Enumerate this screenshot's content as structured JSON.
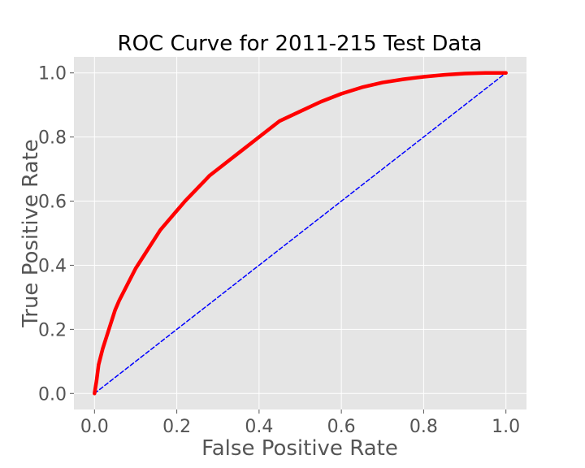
{
  "chart_data": {
    "type": "line",
    "title": "ROC Curve for 2011-215 Test Data",
    "xlabel": "False Positive Rate",
    "ylabel": "True Positive Rate",
    "xlim": [
      -0.05,
      1.05
    ],
    "ylim": [
      -0.05,
      1.05
    ],
    "xticks": [
      0.0,
      0.2,
      0.4,
      0.6,
      0.8,
      1.0
    ],
    "yticks": [
      0.0,
      0.2,
      0.4,
      0.6,
      0.8,
      1.0
    ],
    "xtick_labels": [
      "0.0",
      "0.2",
      "0.4",
      "0.6",
      "0.8",
      "1.0"
    ],
    "ytick_labels": [
      "0.0",
      "0.2",
      "0.4",
      "0.6",
      "0.8",
      "1.0"
    ],
    "grid": true,
    "legend": false,
    "background_color": "#e5e5e5",
    "grid_color": "#ffffff",
    "series": [
      {
        "color": "#ff0000",
        "style": "solid",
        "x": [
          0.0,
          0.005,
          0.01,
          0.02,
          0.03,
          0.04,
          0.05,
          0.06,
          0.08,
          0.1,
          0.12,
          0.14,
          0.16,
          0.18,
          0.2,
          0.22,
          0.25,
          0.28,
          0.3,
          0.33,
          0.36,
          0.4,
          0.45,
          0.5,
          0.55,
          0.6,
          0.65,
          0.7,
          0.75,
          0.8,
          0.85,
          0.9,
          0.95,
          1.0
        ],
        "y": [
          0.0,
          0.04,
          0.09,
          0.14,
          0.18,
          0.22,
          0.26,
          0.29,
          0.34,
          0.39,
          0.43,
          0.47,
          0.51,
          0.54,
          0.57,
          0.6,
          0.64,
          0.68,
          0.7,
          0.73,
          0.76,
          0.8,
          0.85,
          0.88,
          0.91,
          0.935,
          0.955,
          0.97,
          0.98,
          0.988,
          0.994,
          0.998,
          1.0,
          1.0
        ]
      },
      {
        "color": "#0000ff",
        "style": "dashed",
        "x": [
          0.0,
          1.0
        ],
        "y": [
          0.0,
          1.0
        ]
      }
    ]
  }
}
